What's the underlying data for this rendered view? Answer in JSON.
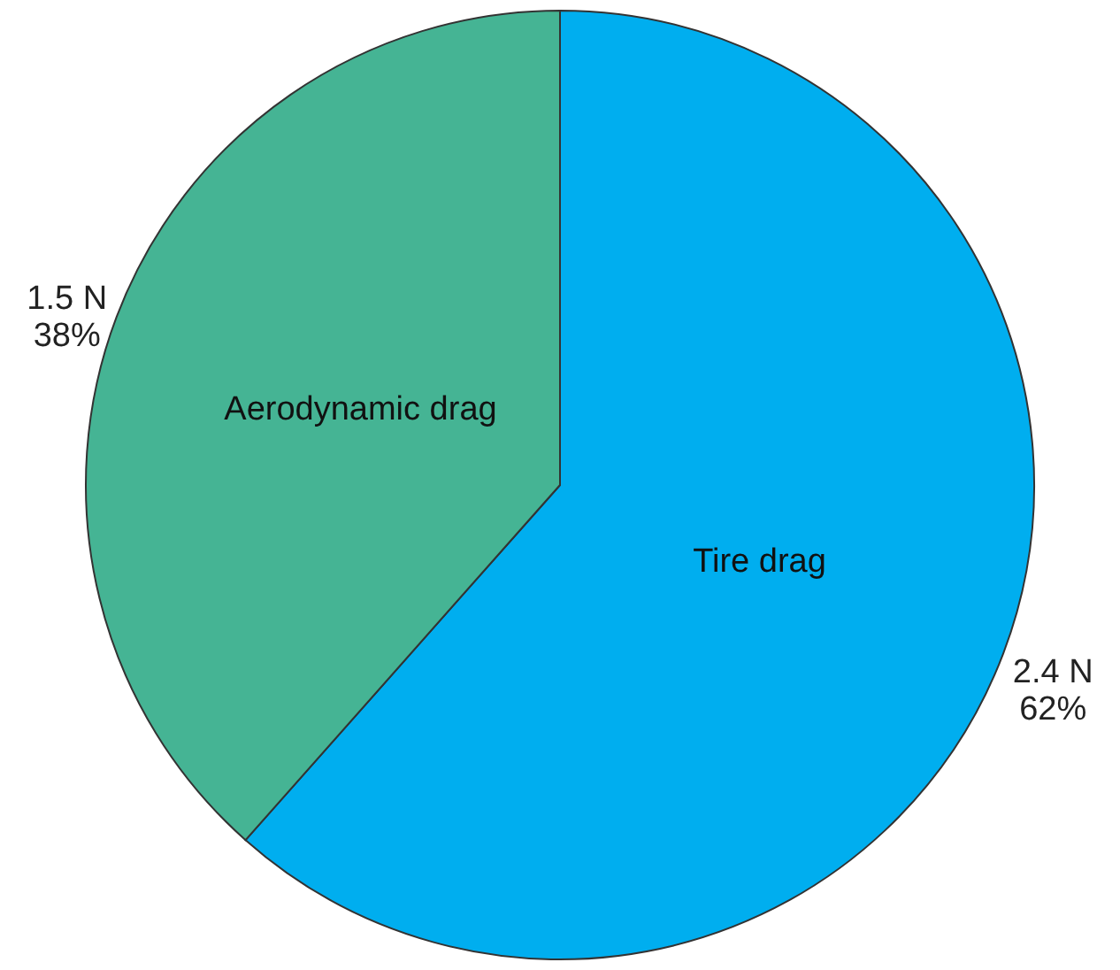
{
  "chart_data": {
    "type": "pie",
    "categories": [
      "Tire drag",
      "Aerodynamic drag"
    ],
    "values": [
      2.4,
      1.5
    ],
    "colors": [
      "#00aeef",
      "#45b494"
    ],
    "value_labels": [
      "2.4 N\n62%",
      "1.5 N\n38%"
    ]
  }
}
